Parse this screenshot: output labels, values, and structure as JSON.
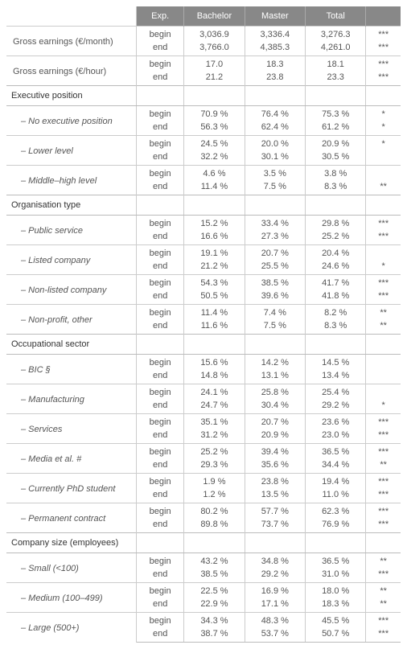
{
  "headers": {
    "exp": "Exp.",
    "bachelor": "Bachelor",
    "master": "Master",
    "total": "Total",
    "sig": ""
  },
  "exp": {
    "begin": "begin",
    "end": "end"
  },
  "rows": {
    "gross_month": {
      "label": "Gross earnings (€/month)",
      "b": [
        "3,036.9",
        "3,336.4",
        "3,276.3",
        "***"
      ],
      "e": [
        "3,766.0",
        "4,385.3",
        "4,261.0",
        "***"
      ]
    },
    "gross_hour": {
      "label": "Gross earnings (€/hour)",
      "b": [
        "17.0",
        "18.3",
        "18.1",
        "***"
      ],
      "e": [
        "21.2",
        "23.8",
        "23.3",
        "***"
      ]
    }
  },
  "sections": {
    "exec": {
      "title": "Executive position",
      "items": {
        "none": {
          "label": "– No executive position",
          "b": [
            "70.9 %",
            "76.4 %",
            "75.3 %",
            "*"
          ],
          "e": [
            "56.3 %",
            "62.4 %",
            "61.2 %",
            "*"
          ]
        },
        "lower": {
          "label": "– Lower level",
          "b": [
            "24.5 %",
            "20.0 %",
            "20.9 %",
            "*"
          ],
          "e": [
            "32.2 %",
            "30.1 %",
            "30.5 %",
            ""
          ]
        },
        "mid": {
          "label": "– Middle–high level",
          "b": [
            "4.6 %",
            "3.5 %",
            "3.8 %",
            ""
          ],
          "e": [
            "11.4 %",
            "7.5 %",
            "8.3 %",
            "**"
          ]
        }
      }
    },
    "org": {
      "title": "Organisation type",
      "items": {
        "public": {
          "label": "– Public service",
          "b": [
            "15.2 %",
            "33.4 %",
            "29.8 %",
            "***"
          ],
          "e": [
            "16.6 %",
            "27.3 %",
            "25.2 %",
            "***"
          ]
        },
        "listed": {
          "label": "– Listed company",
          "b": [
            "19.1 %",
            "20.7 %",
            "20.4 %",
            ""
          ],
          "e": [
            "21.2 %",
            "25.5 %",
            "24.6 %",
            "*"
          ]
        },
        "nonlisted": {
          "label": "– Non-listed company",
          "b": [
            "54.3 %",
            "38.5 %",
            "41.7 %",
            "***"
          ],
          "e": [
            "50.5 %",
            "39.6 %",
            "41.8 %",
            "***"
          ]
        },
        "nonprofit": {
          "label": "– Non-profit, other",
          "b": [
            "11.4 %",
            "7.4 %",
            "8.2 %",
            "**"
          ],
          "e": [
            "11.6 %",
            "7.5 %",
            "8.3 %",
            "**"
          ]
        }
      }
    },
    "occ": {
      "title": "Occupational sector",
      "items": {
        "bic": {
          "label": "– BIC §",
          "b": [
            "15.6 %",
            "14.2 %",
            "14.5 %",
            ""
          ],
          "e": [
            "14.8 %",
            "13.1 %",
            "13.4 %",
            ""
          ]
        },
        "manuf": {
          "label": "– Manufacturing",
          "b": [
            "24.1 %",
            "25.8 %",
            "25.4 %",
            ""
          ],
          "e": [
            "24.7 %",
            "30.4 %",
            "29.2 %",
            "*"
          ]
        },
        "serv": {
          "label": "– Services",
          "b": [
            "35.1 %",
            "20.7 %",
            "23.6 %",
            "***"
          ],
          "e": [
            "31.2 %",
            "20.9 %",
            "23.0 %",
            "***"
          ]
        },
        "media": {
          "label": "– Media et al. #",
          "b": [
            "25.2 %",
            "39.4 %",
            "36.5 %",
            "***"
          ],
          "e": [
            "29.3 %",
            "35.6 %",
            "34.4 %",
            "**"
          ]
        },
        "phd": {
          "label": "– Currently PhD student",
          "b": [
            "1.9 %",
            "23.8 %",
            "19.4 %",
            "***"
          ],
          "e": [
            "1.2 %",
            "13.5 %",
            "11.0 %",
            "***"
          ]
        },
        "perm": {
          "label": "– Permanent contract",
          "b": [
            "80.2 %",
            "57.7 %",
            "62.3 %",
            "***"
          ],
          "e": [
            "89.8 %",
            "73.7 %",
            "76.9 %",
            "***"
          ]
        }
      }
    },
    "size": {
      "title": "Company size (employees)",
      "items": {
        "small": {
          "label": "– Small (<100)",
          "b": [
            "43.2 %",
            "34.8 %",
            "36.5 %",
            "**"
          ],
          "e": [
            "38.5 %",
            "29.2 %",
            "31.0 %",
            "***"
          ]
        },
        "medium": {
          "label": "– Medium (100–499)",
          "b": [
            "22.5 %",
            "16.9 %",
            "18.0 %",
            "**"
          ],
          "e": [
            "22.9 %",
            "17.1 %",
            "18.3 %",
            "**"
          ]
        },
        "large": {
          "label": "– Large (500+)",
          "b": [
            "34.3 %",
            "48.3 %",
            "45.5 %",
            "***"
          ],
          "e": [
            "38.7 %",
            "53.7 %",
            "50.7 %",
            "***"
          ]
        }
      }
    }
  }
}
